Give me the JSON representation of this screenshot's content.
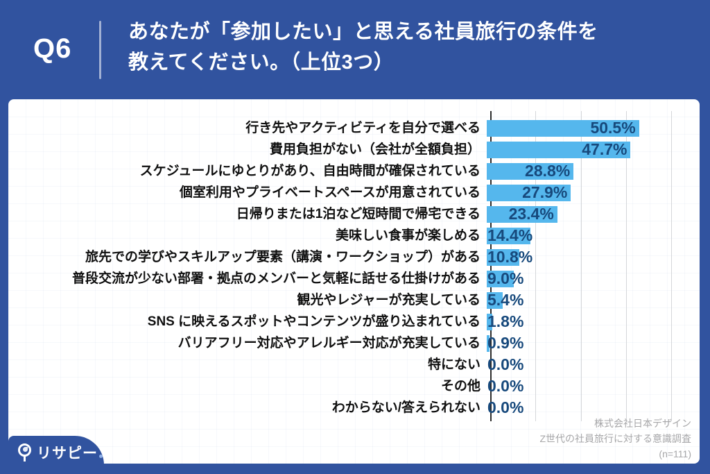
{
  "header": {
    "question_no": "Q6",
    "title_line1": "あなたが「参加したい」と思える社員旅行の条件を",
    "title_line2": "教えてください。（上位3つ）"
  },
  "chart_data": {
    "type": "bar",
    "orientation": "horizontal",
    "title": "あなたが「参加したい」と思える社員旅行の条件を教えてください。（上位3つ）",
    "categories": [
      "行き先やアクティビティを自分で選べる",
      "費用負担がない（会社が全額負担）",
      "スケジュールにゆとりがあり、自由時間が確保されている",
      "個室利用やプライベートスペースが用意されている",
      "日帰りまたは1泊など短時間で帰宅できる",
      "美味しい食事が楽しめる",
      "旅先での学びやスキルアップ要素（講演・ワークショップ）がある",
      "普段交流が少ない部署・拠点のメンバーと気軽に話せる仕掛けがある",
      "観光やレジャーが充実している",
      "SNS に映えるスポットやコンテンツが盛り込まれている",
      "バリアフリー対応やアレルギー対応が充実している",
      "特にない",
      "その他",
      "わからない/答えられない"
    ],
    "values": [
      50.5,
      47.7,
      28.8,
      27.9,
      23.4,
      14.4,
      10.8,
      9.0,
      5.4,
      1.8,
      0.9,
      0.0,
      0.0,
      0.0
    ],
    "value_labels": [
      "50.5%",
      "47.7%",
      "28.8%",
      "27.9%",
      "23.4%",
      "14.4%",
      "10.8%",
      "9.0%",
      "5.4%",
      "1.8%",
      "0.9%",
      "0.0%",
      "0.0%",
      "0.0%"
    ],
    "xlim": [
      0,
      69
    ],
    "gridlines_percent": [
      15,
      30,
      45,
      60
    ],
    "grid": true,
    "legend": false,
    "xlabel": "",
    "ylabel": ""
  },
  "footer": {
    "source_line1": "株式会社日本デザイン",
    "source_line2": "Z世代の社員旅行に対する意識調査",
    "source_line3": "(n=111)",
    "logo_text": "リサピー"
  },
  "colors": {
    "background_blue": "#31539F",
    "bar_blue": "#55B7ED",
    "value_text": "#17497C",
    "category_text": "#0F0F0F",
    "source_text": "#A6A6A8"
  }
}
